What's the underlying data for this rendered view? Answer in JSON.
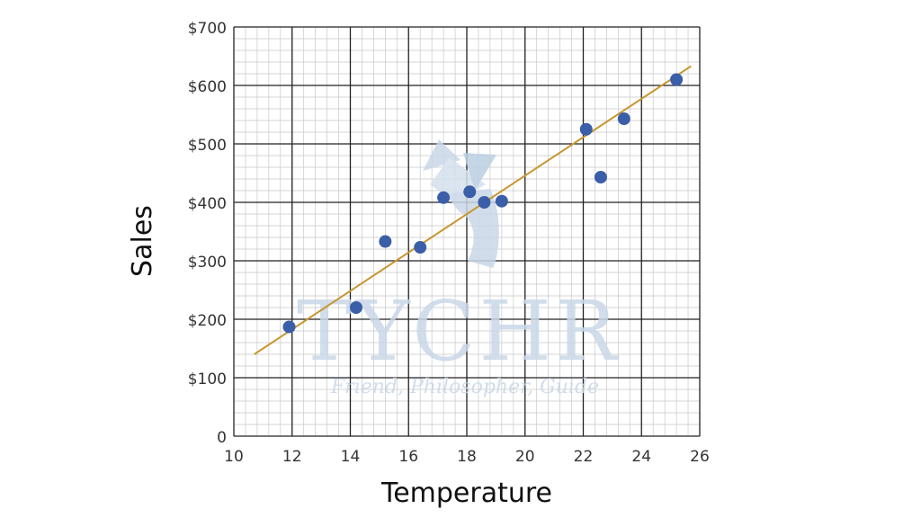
{
  "chart_data": {
    "type": "scatter",
    "xlabel": "Temperature",
    "ylabel": "Sales",
    "xlim": [
      10,
      26
    ],
    "ylim": [
      0,
      700
    ],
    "x_ticks": [
      10,
      12,
      14,
      16,
      18,
      20,
      22,
      24,
      26
    ],
    "x_tick_labels": [
      "10",
      "12",
      "14",
      "16",
      "18",
      "20",
      "22",
      "24",
      "26"
    ],
    "y_ticks": [
      0,
      100,
      200,
      300,
      400,
      500,
      600,
      700
    ],
    "y_tick_labels": [
      "0",
      "$100",
      "$200",
      "$300",
      "$400",
      "$500",
      "$600",
      "$700"
    ],
    "grid": true,
    "points": [
      {
        "x": 11.9,
        "y": 187
      },
      {
        "x": 14.2,
        "y": 220
      },
      {
        "x": 15.2,
        "y": 333
      },
      {
        "x": 16.4,
        "y": 323
      },
      {
        "x": 17.2,
        "y": 408
      },
      {
        "x": 18.1,
        "y": 418
      },
      {
        "x": 18.6,
        "y": 400
      },
      {
        "x": 19.2,
        "y": 402
      },
      {
        "x": 22.1,
        "y": 525
      },
      {
        "x": 22.6,
        "y": 443
      },
      {
        "x": 23.4,
        "y": 543
      },
      {
        "x": 25.2,
        "y": 610
      }
    ],
    "trendline": {
      "x": [
        10.7,
        25.7
      ],
      "y": [
        140,
        633
      ]
    },
    "colors": {
      "points": "#3a5ea8",
      "trendline": "#c8962e",
      "grid_major": "#222222",
      "grid_minor": "#c8c8c8"
    }
  },
  "watermark": {
    "title": "TYCHR",
    "tagline": "Friend, Philosopher, Guide"
  }
}
